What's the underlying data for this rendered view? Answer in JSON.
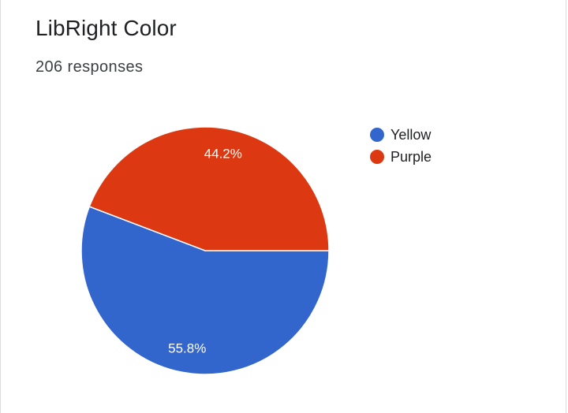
{
  "header": {
    "title": "LibRight Color",
    "responses": "206 responses"
  },
  "chart_data": {
    "type": "pie",
    "categories": [
      "Yellow",
      "Purple"
    ],
    "values": [
      55.8,
      44.2
    ],
    "labels": [
      "55.8%",
      "44.2%"
    ],
    "colors": [
      "#3366cc",
      "#dc3912"
    ],
    "legend_position": "right"
  }
}
